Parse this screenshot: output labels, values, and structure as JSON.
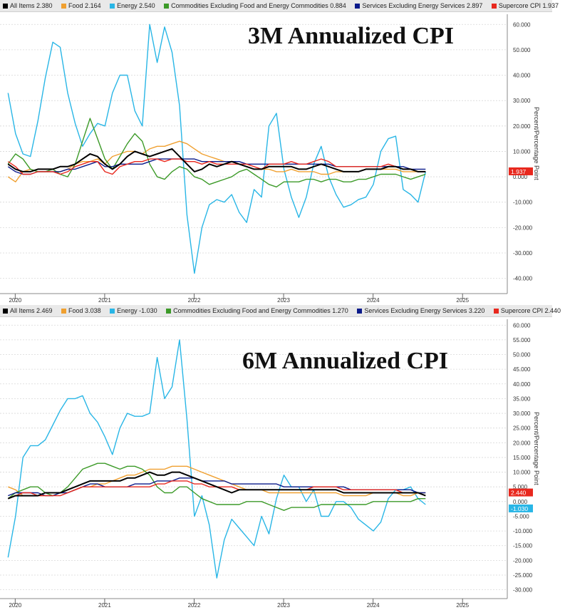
{
  "panels": [
    {
      "title": "3M Annualized CPI",
      "legend": [
        {
          "label": "All Items 2.380",
          "color": "#000000"
        },
        {
          "label": "Food 2.164",
          "color": "#f0a030"
        },
        {
          "label": "Energy 2.540",
          "color": "#29b6e6"
        },
        {
          "label": "Commodities Excluding Food and Energy Commodities 0.884",
          "color": "#3c9a28"
        },
        {
          "label": "Services Excluding Energy Services 2.897",
          "color": "#0a1a8a"
        },
        {
          "label": "Supercore CPI 1.937",
          "color": "#e8281e"
        }
      ],
      "badges": [
        "1.937"
      ],
      "ylabel": "Percent/Percentage Point"
    },
    {
      "title": "6M Annualized CPI",
      "legend": [
        {
          "label": "All Items 2.469",
          "color": "#000000"
        },
        {
          "label": "Food 3.038",
          "color": "#f0a030"
        },
        {
          "label": "Energy -1.030",
          "color": "#29b6e6"
        },
        {
          "label": "Commodities Excluding Food and Energy Commodities 1.270",
          "color": "#3c9a28"
        },
        {
          "label": "Services Excluding Energy Services 3.220",
          "color": "#0a1a8a"
        },
        {
          "label": "Supercore CPI 2.440",
          "color": "#e8281e"
        }
      ],
      "badges": [
        "2.440",
        "-1.030"
      ],
      "ylabel": "Percent/Percentage Point"
    }
  ],
  "chart_data": [
    {
      "type": "line",
      "title": "3M Annualized CPI",
      "ylabel": "Percent/Percentage Point",
      "ylim": [
        -46,
        64
      ],
      "yticks": [
        60,
        50,
        40,
        30,
        20,
        10,
        0,
        -10,
        -20,
        -30,
        -40
      ],
      "ytick_labels": [
        "60.000",
        "50.000",
        "40.000",
        "30.000",
        "20.000",
        "10.000",
        "0.000",
        "-10.000",
        "-20.000",
        "-30.000",
        "-40.000"
      ],
      "xlim": [
        2019.83,
        2025.5
      ],
      "xtick_years": [
        2020,
        2021,
        2022,
        2023,
        2024,
        2025
      ],
      "xtick_labels": [
        "2020",
        "2021",
        "2022",
        "2023",
        "2024",
        "2025"
      ],
      "x_start": 2019.92,
      "x_step": 0.08333,
      "series": [
        {
          "name": "Energy",
          "color": "#29b6e6",
          "values": [
            33,
            17,
            9,
            8,
            22,
            39,
            53,
            51,
            33,
            21,
            12,
            17,
            21,
            20,
            33,
            40,
            40,
            26,
            20,
            60,
            45,
            59,
            49,
            28,
            -15,
            -38,
            -20,
            -11,
            -9,
            -10,
            -7,
            -14,
            -18,
            -5,
            -8,
            20,
            25,
            3,
            -8,
            -16,
            -8,
            5,
            12,
            0,
            -7,
            -12,
            -11,
            -9,
            -8,
            -3,
            10,
            15,
            16,
            -5,
            -7,
            -10,
            2
          ]
        },
        {
          "name": "Food",
          "color": "#f0a030",
          "values": [
            0,
            -2,
            2,
            3,
            2,
            2,
            2,
            2,
            3,
            5,
            6,
            6,
            7,
            5,
            8,
            9,
            10,
            10,
            9,
            11,
            12,
            12,
            13,
            14,
            13,
            11,
            9,
            8,
            7,
            6,
            6,
            5,
            4,
            3,
            3,
            3,
            2,
            2,
            3,
            2,
            2,
            2,
            1,
            1,
            2,
            2,
            2,
            2,
            3,
            3,
            3,
            3,
            3,
            2,
            2,
            2,
            2
          ]
        },
        {
          "name": "Commodities Excluding Food and Energy Commodities",
          "color": "#3c9a28",
          "values": [
            5,
            9,
            7,
            3,
            2,
            2,
            3,
            1,
            0,
            5,
            14,
            23,
            15,
            7,
            3,
            8,
            13,
            17,
            14,
            5,
            0,
            -1,
            2,
            4,
            3,
            0,
            -1,
            -3,
            -2,
            -1,
            0,
            2,
            3,
            1,
            -1,
            -3,
            -4,
            -2,
            -2,
            -2,
            -1,
            -1,
            -2,
            -1,
            -1,
            -2,
            -2,
            -1,
            -1,
            0,
            1,
            1,
            1,
            0,
            -1,
            0,
            1
          ]
        },
        {
          "name": "Services Excluding Energy Services",
          "color": "#0a1a8a",
          "values": [
            4,
            2,
            1,
            1,
            2,
            2,
            2,
            2,
            3,
            3,
            4,
            5,
            6,
            4,
            4,
            5,
            5,
            5,
            5,
            6,
            7,
            7,
            7,
            7,
            7,
            7,
            6,
            6,
            6,
            6,
            6,
            6,
            5,
            5,
            5,
            5,
            5,
            5,
            5,
            5,
            5,
            5,
            5,
            5,
            4,
            4,
            4,
            4,
            4,
            4,
            4,
            4,
            4,
            4,
            3,
            3,
            3
          ]
        },
        {
          "name": "Supercore CPI",
          "color": "#e8281e",
          "values": [
            6,
            4,
            1,
            1,
            2,
            2,
            2,
            1,
            2,
            4,
            5,
            6,
            6,
            2,
            1,
            4,
            5,
            6,
            6,
            7,
            7,
            6,
            7,
            7,
            6,
            6,
            5,
            6,
            5,
            5,
            5,
            5,
            5,
            4,
            3,
            5,
            5,
            5,
            6,
            5,
            5,
            6,
            7,
            6,
            4,
            4,
            4,
            4,
            4,
            4,
            4,
            5,
            4,
            3,
            3,
            2,
            2
          ]
        },
        {
          "name": "All Items",
          "color": "#000000",
          "values": [
            5,
            3,
            2,
            2,
            3,
            3,
            3,
            4,
            4,
            5,
            7,
            9,
            8,
            5,
            3,
            5,
            8,
            10,
            9,
            8,
            9,
            10,
            11,
            8,
            5,
            2,
            3,
            5,
            4,
            5,
            6,
            5,
            4,
            3,
            3,
            4,
            4,
            4,
            4,
            3,
            3,
            4,
            5,
            4,
            3,
            2,
            2,
            2,
            3,
            3,
            3,
            4,
            4,
            3,
            3,
            2,
            2
          ]
        }
      ]
    },
    {
      "type": "line",
      "title": "6M Annualized CPI",
      "ylabel": "Percent/Percentage Point",
      "ylim": [
        -33,
        62
      ],
      "yticks": [
        60,
        55,
        50,
        45,
        40,
        35,
        30,
        25,
        20,
        15,
        10,
        5,
        0,
        -5,
        -10,
        -15,
        -20,
        -25,
        -30
      ],
      "ytick_labels": [
        "60.000",
        "55.000",
        "50.000",
        "45.000",
        "40.000",
        "35.000",
        "30.000",
        "25.000",
        "20.000",
        "15.000",
        "10.000",
        "5.000",
        "0.000",
        "-5.000",
        "-10.000",
        "-15.000",
        "-20.000",
        "-25.000",
        "-30.000"
      ],
      "xlim": [
        2019.83,
        2025.5
      ],
      "xtick_years": [
        2020,
        2021,
        2022,
        2023,
        2024,
        2025
      ],
      "xtick_labels": [
        "2020",
        "2021",
        "2022",
        "2023",
        "2024",
        "2025"
      ],
      "x_start": 2019.92,
      "x_step": 0.08333,
      "series": [
        {
          "name": "Energy",
          "color": "#29b6e6",
          "values": [
            -19,
            -5,
            15,
            19,
            19,
            21,
            26,
            31,
            35,
            35,
            36,
            30,
            27,
            22,
            16,
            25,
            30,
            29,
            29,
            30,
            49,
            35,
            39,
            55,
            28,
            -5,
            2,
            -8,
            -26,
            -13,
            -6,
            -9,
            -12,
            -15,
            -5,
            -11,
            1,
            9,
            5,
            5,
            0,
            4,
            -5,
            -5,
            0,
            0,
            -2,
            -6,
            -8,
            -10,
            -7,
            1,
            4,
            4,
            5,
            1,
            -1
          ]
        },
        {
          "name": "Food",
          "color": "#f0a030",
          "values": [
            5,
            4,
            2,
            2,
            2,
            2,
            2,
            3,
            3,
            4,
            5,
            5,
            6,
            6,
            7,
            8,
            9,
            9,
            10,
            11,
            11,
            11,
            12,
            12,
            12,
            11,
            10,
            9,
            8,
            7,
            6,
            5,
            4,
            4,
            4,
            3,
            3,
            3,
            3,
            3,
            3,
            3,
            3,
            3,
            3,
            2,
            2,
            2,
            2,
            3,
            3,
            3,
            3,
            2,
            2,
            3,
            3
          ]
        },
        {
          "name": "Commodities Excluding Food and Energy Commodities",
          "color": "#3c9a28",
          "values": [
            1,
            3,
            4,
            5,
            5,
            3,
            2,
            3,
            5,
            8,
            11,
            12,
            13,
            13,
            12,
            11,
            12,
            12,
            11,
            9,
            5,
            3,
            3,
            5,
            5,
            3,
            1,
            0,
            -1,
            -1,
            -1,
            -1,
            0,
            0,
            0,
            -1,
            -2,
            -3,
            -2,
            -2,
            -2,
            -2,
            -1,
            -1,
            -1,
            -1,
            -1,
            -1,
            -1,
            0,
            0,
            0,
            0,
            0,
            0,
            1,
            1
          ]
        },
        {
          "name": "Services Excluding Energy Services",
          "color": "#0a1a8a",
          "values": [
            2,
            3,
            3,
            3,
            3,
            2,
            2,
            3,
            3,
            4,
            5,
            6,
            6,
            5,
            5,
            5,
            5,
            6,
            6,
            6,
            7,
            7,
            7,
            8,
            8,
            8,
            7,
            7,
            7,
            7,
            6,
            6,
            6,
            6,
            6,
            6,
            6,
            5,
            5,
            5,
            5,
            5,
            5,
            5,
            5,
            5,
            4,
            4,
            4,
            4,
            4,
            4,
            4,
            4,
            4,
            3,
            3
          ]
        },
        {
          "name": "Supercore CPI",
          "color": "#e8281e",
          "values": [
            1,
            2,
            3,
            3,
            2,
            2,
            2,
            2,
            3,
            4,
            5,
            5,
            5,
            5,
            5,
            5,
            5,
            5,
            5,
            5,
            6,
            6,
            7,
            7,
            7,
            6,
            6,
            5,
            5,
            5,
            5,
            4,
            4,
            4,
            4,
            4,
            4,
            4,
            4,
            4,
            4,
            5,
            5,
            5,
            5,
            4,
            4,
            4,
            4,
            4,
            4,
            4,
            4,
            3,
            3,
            3,
            2
          ]
        },
        {
          "name": "All Items",
          "color": "#000000",
          "values": [
            1,
            2,
            2,
            2,
            2,
            3,
            3,
            3,
            4,
            5,
            6,
            7,
            7,
            7,
            7,
            7,
            8,
            8,
            9,
            10,
            9,
            9,
            10,
            10,
            9,
            8,
            7,
            6,
            5,
            4,
            3,
            4,
            4,
            4,
            4,
            4,
            4,
            4,
            4,
            4,
            4,
            4,
            4,
            4,
            4,
            3,
            3,
            3,
            3,
            3,
            3,
            3,
            3,
            3,
            3,
            3,
            2
          ]
        }
      ]
    }
  ]
}
